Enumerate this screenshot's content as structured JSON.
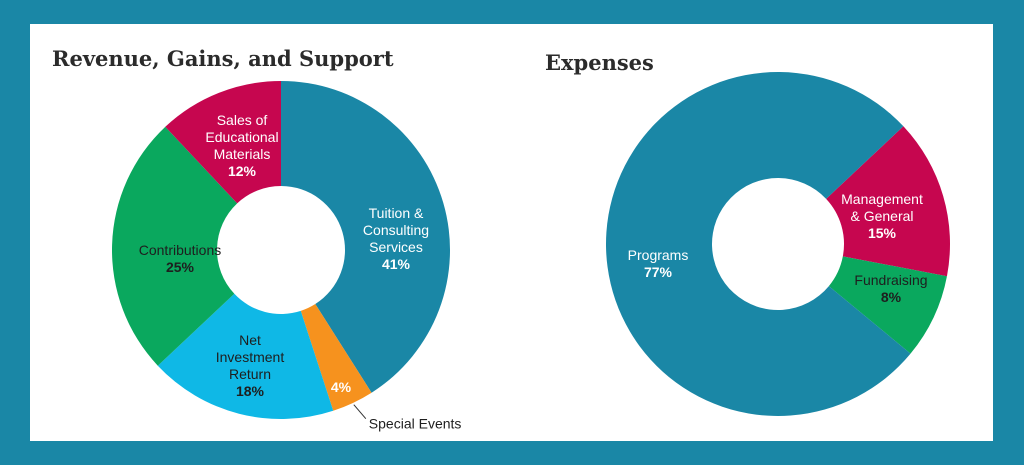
{
  "colors": {
    "frame": "#1a87a6",
    "teal": "#1a87a6",
    "crimson": "#c6064f",
    "green": "#0aa85e",
    "sky": "#0fb8e6",
    "orange": "#f6921e"
  },
  "chart_data": [
    {
      "type": "pie",
      "donut": true,
      "title": "Revenue, Gains, and Support",
      "slices": [
        {
          "label": "Tuition & Consulting Services",
          "lines": [
            "Tuition &",
            "Consulting",
            "Services"
          ],
          "value": 41,
          "value_label": "41%",
          "color": "#1a87a6",
          "label_color": "#ffffff"
        },
        {
          "label": "Special Events",
          "lines": [],
          "value": 4,
          "value_label": "4%",
          "color": "#f6921e",
          "label_color": "#ffffff",
          "callout": "Special Events"
        },
        {
          "label": "Net Investment Return",
          "lines": [
            "Net",
            "Investment",
            "Return"
          ],
          "value": 18,
          "value_label": "18%",
          "color": "#0fb8e6",
          "label_color": "#1e1e1e"
        },
        {
          "label": "Contributions",
          "lines": [
            "Contributions"
          ],
          "value": 25,
          "value_label": "25%",
          "color": "#0aa85e",
          "label_color": "#1e1e1e"
        },
        {
          "label": "Sales of Educational Materials",
          "lines": [
            "Sales of",
            "Educational",
            "Materials"
          ],
          "value": 12,
          "value_label": "12%",
          "color": "#c6064f",
          "label_color": "#ffffff"
        }
      ]
    },
    {
      "type": "pie",
      "donut": true,
      "title": "Expenses",
      "slices": [
        {
          "label": "Management & General",
          "lines": [
            "Management",
            "& General"
          ],
          "value": 15,
          "value_label": "15%",
          "color": "#c6064f",
          "label_color": "#ffffff"
        },
        {
          "label": "Fundraising",
          "lines": [
            "Fundraising"
          ],
          "value": 8,
          "value_label": "8%",
          "color": "#0aa85e",
          "label_color": "#1e1e1e"
        },
        {
          "label": "Programs",
          "lines": [
            "Programs"
          ],
          "value": 77,
          "value_label": "77%",
          "color": "#1a87a6",
          "label_color": "#ffffff"
        }
      ]
    }
  ]
}
